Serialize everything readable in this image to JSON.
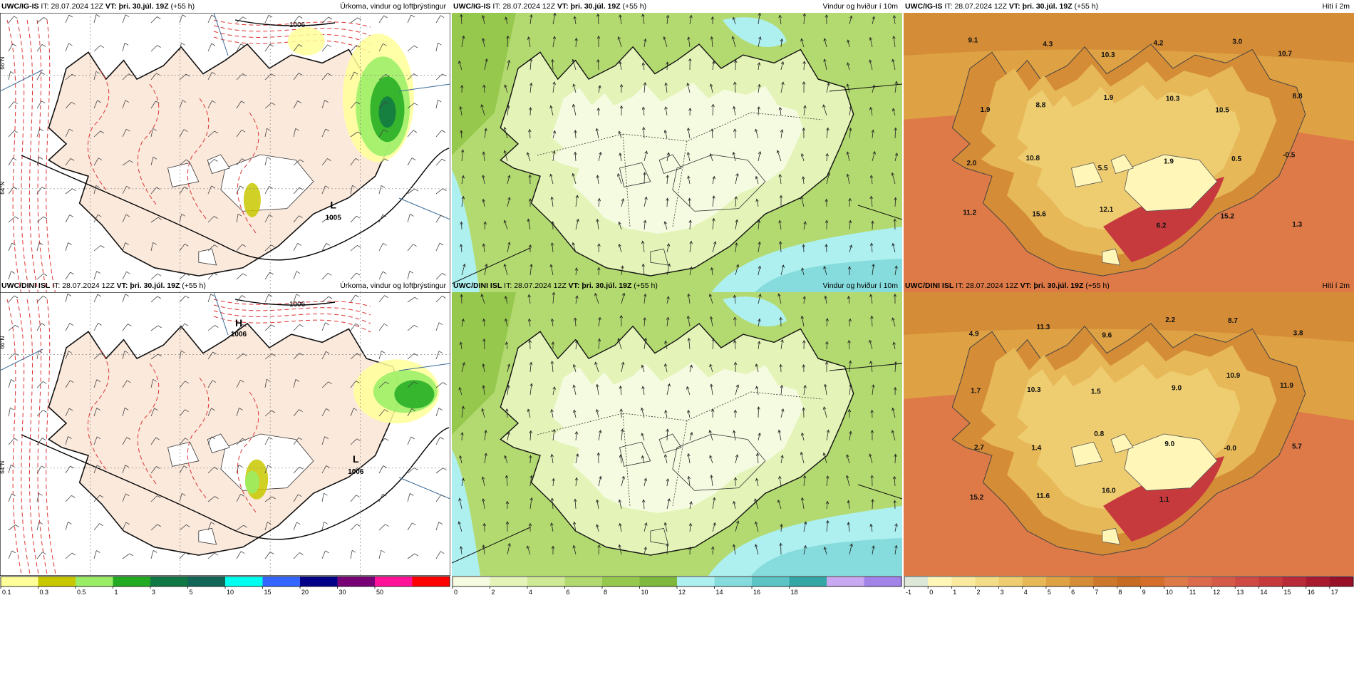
{
  "rows": [
    {
      "model": "UWC/IG-IS",
      "key": "igis"
    },
    {
      "model": "UWC/DINI ISL",
      "key": "dini"
    }
  ],
  "common": {
    "it_label": "IT:",
    "it_value": "28.07.2024 12Z",
    "vt_label": "VT:",
    "vt_value": "þri. 30.júl. 19Z",
    "lead": "(+55 h)"
  },
  "panels": {
    "precip": {
      "title": "Úrkoma, vindur og loftþrýstingur"
    },
    "wind": {
      "title": "Vindur og hviður í 10m"
    },
    "temp": {
      "title": "Hiti í 2m"
    }
  },
  "colorbars": {
    "precip": {
      "labels": [
        "0.1",
        "0.3",
        "0.5",
        "1",
        "3",
        "5",
        "10",
        "15",
        "20",
        "30",
        "50"
      ],
      "colors": [
        "#ffff99",
        "#c8c800",
        "#99ee66",
        "#22aa22",
        "#117744",
        "#116655",
        "#00ffee",
        "#3366ff",
        "#000088",
        "#770077",
        "#ff1199",
        "#ff0000"
      ]
    },
    "wind_igis": {
      "labels": [
        "0",
        "2",
        "4",
        "6",
        "8",
        "10",
        "12",
        "14"
      ],
      "colors": [
        "#f5fbe0",
        "#e4f4b8",
        "#cfe994",
        "#b3da70",
        "#97c84e",
        "#7eb83c",
        "#aef0f0",
        "#86dcdc",
        "#5cc4c4",
        "#34a6a6"
      ]
    },
    "wind_dini": {
      "labels": [
        "0",
        "2",
        "4",
        "6",
        "8",
        "10",
        "12",
        "14",
        "16",
        "18"
      ],
      "colors": [
        "#f5fbe0",
        "#e4f4b8",
        "#cfe994",
        "#b3da70",
        "#97c84e",
        "#7eb83c",
        "#aef0f0",
        "#86dcdc",
        "#5cc4c4",
        "#34a6a6",
        "#c8a8f0",
        "#a284e8"
      ]
    },
    "temp_igis": {
      "labels": [
        "-1",
        "0",
        "1",
        "2",
        "3",
        "4",
        "5",
        "6",
        "7",
        "8",
        "9",
        "10",
        "11",
        "12",
        "13",
        "14",
        "15",
        "16"
      ],
      "colors": [
        "#dde8d8",
        "#fff6b8",
        "#faeaa0",
        "#f4dd88",
        "#eecc70",
        "#e6b858",
        "#dea244",
        "#d58c36",
        "#cc782a",
        "#c76a22",
        "#d56e2a",
        "#de7a48",
        "#dc6a4c",
        "#d65a48",
        "#cf4a44",
        "#c63a3e",
        "#b82a38",
        "#a81a30"
      ]
    },
    "temp_dini": {
      "labels": [
        "-1",
        "0",
        "1",
        "2",
        "3",
        "4",
        "5",
        "6",
        "7",
        "8",
        "9",
        "10",
        "11",
        "12",
        "13",
        "14",
        "15",
        "16",
        "17"
      ],
      "colors": [
        "#dde8d8",
        "#fff6b8",
        "#faeaa0",
        "#f4dd88",
        "#eecc70",
        "#e6b858",
        "#dea244",
        "#d58c36",
        "#cc782a",
        "#c76a22",
        "#d56e2a",
        "#de7a48",
        "#dc6a4c",
        "#d65a48",
        "#cf4a44",
        "#c63a3e",
        "#b82a38",
        "#a81a30",
        "#981028"
      ]
    }
  },
  "temp_labels": {
    "igis": [
      "9.1",
      "4.3",
      "10.3",
      "4.2",
      "3.0",
      "10.7",
      "1.9",
      "8.8",
      "1.9",
      "10.3",
      "10.5",
      "8.8",
      "2.0",
      "10.8",
      "5.5",
      "1.9",
      "0.5",
      "-0.5",
      "11.2",
      "15.6",
      "12.1",
      "6.2",
      "15.2",
      "1.3"
    ],
    "dini": [
      "4.9",
      "11.3",
      "9.6",
      "2.2",
      "8.7",
      "3.8",
      "1.7",
      "10.3",
      "1.5",
      "9.0",
      "10.9",
      "11.9",
      "2.7",
      "1.4",
      "0.8",
      "9.0",
      "-0.0",
      "5.7",
      "15.2",
      "11.6",
      "16.0",
      "1.1"
    ]
  },
  "pressure_labels": {
    "igis": {
      "center": "L",
      "value": "1005",
      "isobar": "1006"
    },
    "dini": {
      "high_center": "H",
      "high_value": "1006",
      "center": "L",
      "value": "1006",
      "isobar": "1006"
    }
  },
  "lat_labels": [
    "66°N",
    "64°N"
  ]
}
